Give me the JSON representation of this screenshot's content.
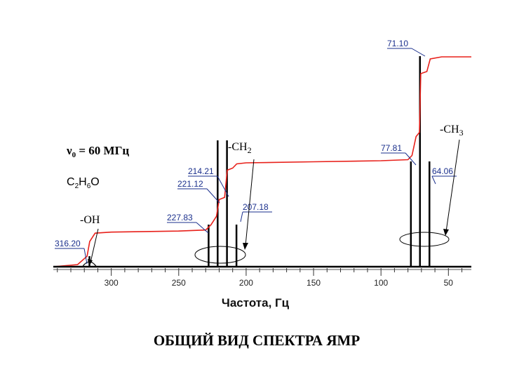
{
  "chart_data": {
    "type": "line",
    "title": "ОБЩИЙ ВИД СПЕКТРА ЯМР",
    "xlabel": "Частота, Гц",
    "ylabel": "",
    "xlim": [
      343,
      33
    ],
    "x_ticks": [
      "300",
      "250",
      "200",
      "150",
      "100",
      "50"
    ],
    "x_tick_values": [
      300,
      250,
      200,
      150,
      100,
      50
    ],
    "frequency_text": "ν0 = 60 МГц",
    "formula_text": "C2H6O",
    "peaks": [
      {
        "value": 316.2,
        "label": "316.20",
        "group": "OH",
        "height": 0.05
      },
      {
        "value": 227.83,
        "label": "227.83",
        "group": "CH2",
        "height": 0.2
      },
      {
        "value": 221.12,
        "label": "221.12",
        "group": "CH2",
        "height": 0.6
      },
      {
        "value": 214.21,
        "label": "214.21",
        "group": "CH2",
        "height": 0.6
      },
      {
        "value": 207.18,
        "label": "207.18",
        "group": "CH2",
        "height": 0.2
      },
      {
        "value": 77.81,
        "label": "77.81",
        "group": "CH3",
        "height": 0.5
      },
      {
        "value": 71.1,
        "label": "71.10",
        "group": "CH3",
        "height": 1.0
      },
      {
        "value": 64.06,
        "label": "64.06",
        "group": "CH3",
        "height": 0.5
      }
    ],
    "groups": [
      {
        "name": "OH",
        "label": "-OH"
      },
      {
        "name": "CH2",
        "label": "-CH2"
      },
      {
        "name": "CH3",
        "label": "-CH3"
      }
    ],
    "integral_curve": {
      "color": "#e8201a",
      "points": [
        [
          343,
          0.0
        ],
        [
          325,
          0.01
        ],
        [
          318,
          0.05
        ],
        [
          316,
          0.12
        ],
        [
          312,
          0.16
        ],
        [
          300,
          0.165
        ],
        [
          250,
          0.17
        ],
        [
          230,
          0.175
        ],
        [
          226,
          0.2
        ],
        [
          222,
          0.24
        ],
        [
          220,
          0.32
        ],
        [
          216,
          0.33
        ],
        [
          214,
          0.46
        ],
        [
          210,
          0.47
        ],
        [
          207,
          0.49
        ],
        [
          200,
          0.495
        ],
        [
          150,
          0.5
        ],
        [
          100,
          0.505
        ],
        [
          80,
          0.51
        ],
        [
          77,
          0.53
        ],
        [
          74,
          0.62
        ],
        [
          71.5,
          0.64
        ],
        [
          70.5,
          0.92
        ],
        [
          66,
          0.93
        ],
        [
          63.5,
          0.99
        ],
        [
          55,
          1.0
        ],
        [
          33,
          1.0
        ]
      ]
    },
    "colors": {
      "integral": "#e8201a",
      "labels": "#1a2f8c",
      "axis": "#000000",
      "peaks": "#000000"
    }
  }
}
